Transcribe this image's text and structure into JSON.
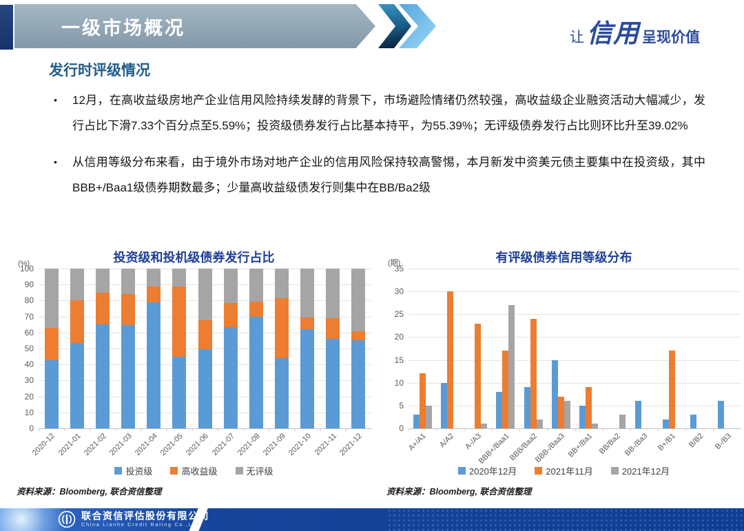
{
  "header": {
    "title": "一级市场概况",
    "slogan_prefix": "让",
    "slogan_brand": "信用",
    "slogan_suffix": "呈现价值"
  },
  "section": {
    "title": "发行时评级情况"
  },
  "bullets": [
    "12月，在高收益级房地产企业信用风险持续发酵的背景下，市场避险情绪仍然较强，高收益级企业融资活动大幅减少，发行占比下滑7.33个百分点至5.59%；投资级债券发行占比基本持平，为55.39%；无评级债券发行占比则环比升至39.02%",
    "从信用等级分布来看，由于境外市场对地产企业的信用风险保持较高警惕，本月新发中资美元债主要集中在投资级，其中BBB+/Baa1级债券期数最多；少量高收益级债发行则集中在BB/Ba2级"
  ],
  "sources": {
    "left": "资料来源：Bloomberg, 联合资信整理",
    "right": "资料来源：Bloomberg, 联合资信整理"
  },
  "footer": {
    "company_cn": "联合资信评估股份有限公司",
    "company_en": "China Lianhe Credit Rating Co.,Ltd."
  },
  "colors": {
    "series_blue": "#5B9BD5",
    "series_orange": "#ED7D31",
    "series_gray": "#A5A5A5",
    "banner_gray_blue": "#93A7B6",
    "navy_strip": "#1E3C78",
    "chart_title_blue": "#1E3F97",
    "section_title_blue": "#1F5C8B",
    "slogan_blue": "#2B4A9E",
    "footer_blue": "#0F3E92"
  },
  "chart_data": [
    {
      "type": "bar",
      "stacked": true,
      "title": "投资级和投机级债券发行占比",
      "unit": "(%)",
      "categories": [
        "2020-12",
        "2021-01",
        "2021-02",
        "2021-03",
        "2021-04",
        "2021-05",
        "2021-06",
        "2021-07",
        "2021-08",
        "2021-09",
        "2021-10",
        "2021-11",
        "2021-12"
      ],
      "series": [
        {
          "name": "投资级",
          "color": "#5B9BD5",
          "values": [
            42.5,
            53.5,
            65,
            64.5,
            79,
            45,
            49.5,
            63.5,
            70,
            44,
            62,
            56,
            55.39
          ]
        },
        {
          "name": "高收益级",
          "color": "#ED7D31",
          "values": [
            20.5,
            26.5,
            20,
            19.5,
            10,
            44,
            18,
            15,
            9.5,
            37.5,
            7.5,
            13,
            5.59
          ]
        },
        {
          "name": "无评级",
          "color": "#A5A5A5",
          "values": [
            37,
            20,
            15,
            16,
            11,
            11,
            32.5,
            21.5,
            20.5,
            18.5,
            30.5,
            31,
            39.02
          ]
        }
      ],
      "ylim": [
        0,
        100
      ],
      "ytick": 10,
      "grid": true,
      "legend_position": "bottom"
    },
    {
      "type": "bar",
      "stacked": false,
      "title": "有评级债券信用等级分布",
      "unit": "(期)",
      "categories": [
        "A+/A1",
        "A/A2",
        "A-/A3",
        "BBB+/Baa1",
        "BBB/Baa2",
        "BBB-/Baa3",
        "BB+/Ba1",
        "BB/Ba2",
        "BB-/Ba3",
        "B+/B1",
        "B/B2",
        "B-/B3"
      ],
      "series": [
        {
          "name": "2020年12月",
          "color": "#5B9BD5",
          "values": [
            3,
            10,
            0,
            8,
            9,
            15,
            5,
            0,
            6,
            2,
            3,
            6
          ]
        },
        {
          "name": "2021年11月",
          "color": "#ED7D31",
          "values": [
            12,
            30,
            23,
            17,
            24,
            7,
            9,
            0,
            0,
            17,
            0,
            0
          ]
        },
        {
          "name": "2021年12月",
          "color": "#A5A5A5",
          "values": [
            5,
            0,
            1,
            27,
            2,
            6,
            1,
            3,
            0,
            0,
            0,
            0
          ]
        }
      ],
      "ylim": [
        0,
        35
      ],
      "ytick": 5,
      "grid": true,
      "legend_position": "bottom"
    }
  ]
}
